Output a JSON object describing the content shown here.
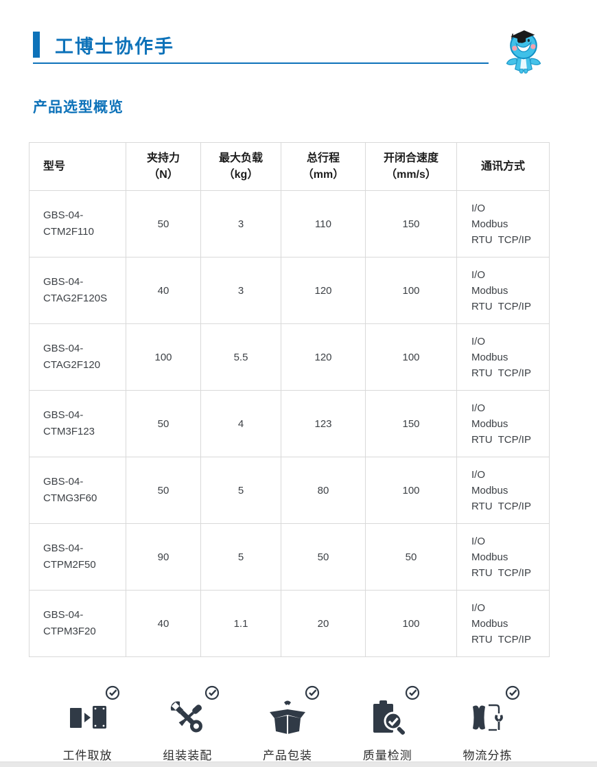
{
  "page": {
    "title": "工博士协作手",
    "section_title": "产品选型概览"
  },
  "colors": {
    "accent_blue": "#0d72b9",
    "icon_dark": "#303a46",
    "table_border": "#d9d9d9",
    "footer_strip": "#e8e8e8"
  },
  "mascot": {
    "name": "gongboshi-mascot",
    "description": "cartoon figure with graduation cap"
  },
  "table": {
    "columns": [
      {
        "label": "型号",
        "unit": ""
      },
      {
        "label": "夹持力",
        "unit": "（N）"
      },
      {
        "label": "最大负载",
        "unit": "（kg）"
      },
      {
        "label": "总行程",
        "unit": "（mm）"
      },
      {
        "label": "开闭合速度",
        "unit": "（mm/s）"
      },
      {
        "label": "通讯方式",
        "unit": ""
      }
    ],
    "rows": [
      {
        "model": [
          "GBS-04-",
          "CTM2F110"
        ],
        "force": "50",
        "load": "3",
        "stroke": "110",
        "speed": "150",
        "comm": [
          "I/O",
          "Modbus",
          "RTU  TCP/IP"
        ]
      },
      {
        "model": [
          "GBS-04-",
          "CTAG2F120S"
        ],
        "force": "40",
        "load": "3",
        "stroke": "120",
        "speed": "100",
        "comm": [
          "I/O",
          "Modbus",
          "RTU  TCP/IP"
        ]
      },
      {
        "model": [
          "GBS-04-",
          "CTAG2F120"
        ],
        "force": "100",
        "load": "5.5",
        "stroke": "120",
        "speed": "100",
        "comm": [
          "I/O",
          "Modbus",
          "RTU  TCP/IP"
        ]
      },
      {
        "model": [
          "GBS-04-",
          "CTM3F123"
        ],
        "force": "50",
        "load": "4",
        "stroke": "123",
        "speed": "150",
        "comm": [
          "I/O",
          "Modbus",
          "RTU  TCP/IP"
        ]
      },
      {
        "model": [
          "GBS-04-",
          "CTMG3F60"
        ],
        "force": "50",
        "load": "5",
        "stroke": "80",
        "speed": "100",
        "comm": [
          "I/O",
          "Modbus",
          "RTU  TCP/IP"
        ]
      },
      {
        "model": [
          "GBS-04-",
          "CTPM2F50"
        ],
        "force": "90",
        "load": "5",
        "stroke": "50",
        "speed": "50",
        "comm": [
          "I/O",
          "Modbus",
          "RTU  TCP/IP"
        ]
      },
      {
        "model": [
          "GBS-04-",
          "CTPM3F20"
        ],
        "force": "40",
        "load": "1.1",
        "stroke": "20",
        "speed": "100",
        "comm": [
          "I/O",
          "Modbus",
          "RTU  TCP/IP"
        ]
      }
    ]
  },
  "applications": [
    {
      "label": "工件取放",
      "icon": "pick-place-icon"
    },
    {
      "label": "组装装配",
      "icon": "assembly-icon"
    },
    {
      "label": "产品包装",
      "icon": "packaging-icon"
    },
    {
      "label": "质量检测",
      "icon": "quality-inspection-icon"
    },
    {
      "label": "物流分拣",
      "icon": "logistics-sorting-icon"
    }
  ]
}
